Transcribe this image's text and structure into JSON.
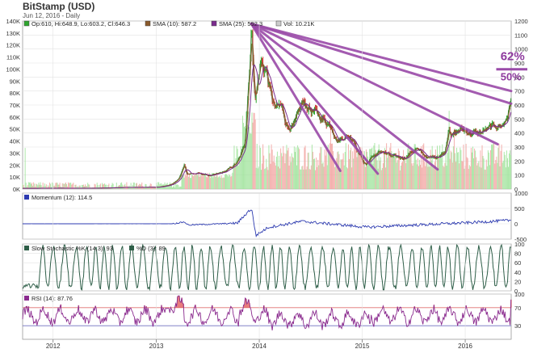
{
  "header": {
    "title": "BitStamp (USD)",
    "date_line": "Jun 12, 2016 - Daily"
  },
  "colors": {
    "candle_up": "#2ea62e",
    "candle_down": "#c8302a",
    "volume_up": "#9fe39a",
    "volume_down": "#f2a3a0",
    "sma10": "#8b5a2b",
    "sma25": "#7b2c8e",
    "momentum": "#2d3bb0",
    "stochastic": "#2e5e48",
    "rsi": "#8a2a8e",
    "rsi_fill": "#e05050",
    "annotation": "#9a4aa8",
    "grid": "#e2e2e2"
  },
  "chart_data": [
    {
      "type": "line",
      "panel": "price",
      "legend": [
        {
          "label": "Op:610, Hi:648.9, Lo:603.2, Cl:646.3",
          "color": "#2ea62e"
        },
        {
          "label": "SMA (10): 587.2",
          "color": "#8b5a2b"
        },
        {
          "label": "SMA (25): 592.3",
          "color": "#7b2c8e"
        },
        {
          "label": "Vol: 10.21K",
          "color": "#cccccc"
        }
      ],
      "x_ticks": [
        "2012",
        "2013",
        "2014",
        "2015",
        "2016"
      ],
      "y_left_ticks": [
        "0K",
        "10K",
        "20K",
        "30K",
        "40K",
        "50K",
        "60K",
        "70K",
        "80K",
        "90K",
        "100K",
        "110K",
        "120K",
        "130K",
        "140K"
      ],
      "y_left_range": [
        0,
        140000
      ],
      "y_right_ticks": [
        "0",
        "100",
        "200",
        "300",
        "400",
        "500",
        "600",
        "700",
        "800",
        "900",
        "1000",
        "1100",
        "1200"
      ],
      "y_right_range": [
        0,
        1200
      ],
      "price_series": {
        "name": "",
        "x": [
          "2011-09-15",
          "2012-01-01",
          "2012-06-01",
          "2012-09-01",
          "2013-01-01",
          "2013-02-15",
          "2013-03-20",
          "2013-04-10",
          "2013-04-20",
          "2013-06-01",
          "2013-07-15",
          "2013-09-01",
          "2013-10-15",
          "2013-11-10",
          "2013-11-20",
          "2013-12-04",
          "2013-12-18",
          "2014-01-05",
          "2014-01-25",
          "2014-02-25",
          "2014-03-20",
          "2014-04-10",
          "2014-05-01",
          "2014-06-01",
          "2014-06-20",
          "2014-08-01",
          "2014-09-15",
          "2014-10-05",
          "2014-11-01",
          "2014-12-01",
          "2015-01-14",
          "2015-02-01",
          "2015-03-15",
          "2015-04-15",
          "2015-06-01",
          "2015-07-10",
          "2015-08-25",
          "2015-10-01",
          "2015-10-20",
          "2015-11-04",
          "2015-11-15",
          "2015-12-15",
          "2016-01-15",
          "2016-02-15",
          "2016-03-15",
          "2016-04-15",
          "2016-05-15",
          "2016-06-01",
          "2016-06-12"
        ],
        "values": [
          5,
          6,
          6,
          11,
          13,
          28,
          70,
          180,
          110,
          110,
          95,
          125,
          190,
          320,
          650,
          1150,
          650,
          900,
          850,
          570,
          600,
          450,
          440,
          620,
          590,
          520,
          450,
          340,
          380,
          360,
          170,
          230,
          270,
          230,
          225,
          290,
          220,
          240,
          260,
          460,
          380,
          430,
          400,
          400,
          420,
          450,
          460,
          540,
          646
        ]
      },
      "sma10_series": {
        "name": "SMA (10)",
        "smoothing": 10
      },
      "sma25_series": {
        "name": "SMA (25)",
        "smoothing": 25
      },
      "annotations": {
        "fan_origin": {
          "x": "2013-12-04",
          "y": 1180
        },
        "fan_lines": [
          {
            "x": "2014-10-15",
            "y": 130
          },
          {
            "x": "2015-02-25",
            "y": 110
          },
          {
            "x": "2015-09-25",
            "y": 140
          },
          {
            "x": "2016-04-25",
            "y": 320
          },
          {
            "x": "2016-06-12",
            "y": 610
          },
          {
            "x": "2016-06-12",
            "y": 700
          }
        ],
        "labels": [
          {
            "text": "62%",
            "x": "2016-05-05",
            "y": 920,
            "size": 15
          },
          {
            "text": "50%",
            "x": "2016-05-05",
            "y": 775,
            "size": 13
          }
        ],
        "label_rule": {
          "x1": "2016-04-20",
          "x2": "2016-06-12",
          "y": 855
        }
      }
    },
    {
      "type": "line",
      "panel": "momentum",
      "legend": [
        {
          "label": "Momentum (12): 114.5",
          "color": "#2d3bb0"
        }
      ],
      "y_ticks": [
        "1000",
        "500",
        "0",
        "-500"
      ],
      "y_range": [
        -500,
        1000
      ],
      "x": [
        "2011-09-15",
        "2013-03-01",
        "2013-04-10",
        "2013-04-25",
        "2013-10-15",
        "2013-11-25",
        "2013-12-05",
        "2013-12-20",
        "2014-02-01",
        "2014-06-01",
        "2015-01-15",
        "2016-01-01",
        "2016-06-12"
      ],
      "values": [
        0,
        2,
        60,
        -40,
        20,
        420,
        480,
        -380,
        -120,
        80,
        -110,
        30,
        114.5
      ]
    },
    {
      "type": "line",
      "panel": "stochastic",
      "legend": [
        {
          "label": "Slow Stochastic %K (14,3): 93",
          "color": "#2e5e48"
        },
        {
          "label": "%D (3): 89",
          "color": "#2e5e48"
        }
      ],
      "y_ticks": [
        "100",
        "80",
        "60",
        "40",
        "20",
        "0"
      ],
      "y_range": [
        0,
        100
      ],
      "period_days": 35,
      "last_value": 93
    },
    {
      "type": "line",
      "panel": "rsi",
      "legend": [
        {
          "label": "RSI (14): 87.76",
          "color": "#8a2a8e"
        }
      ],
      "y_ticks": [
        "100",
        "70",
        "30"
      ],
      "y_range": [
        0,
        100
      ],
      "levels": [
        70,
        30
      ],
      "period_days": 60,
      "last_value": 87.76
    }
  ]
}
